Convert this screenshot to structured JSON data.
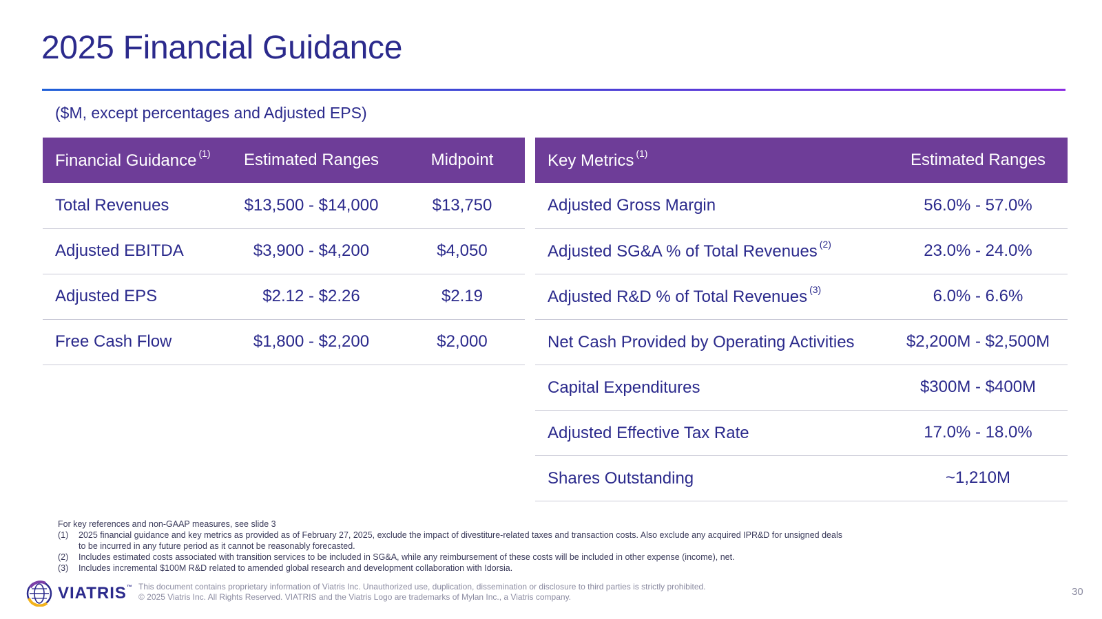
{
  "title": "2025 Financial Guidance",
  "subtitle": "($M, except percentages and Adjusted EPS)",
  "left_table": {
    "headers": {
      "col1": "Financial Guidance",
      "col1_sup": "(1)",
      "col2": "Estimated Ranges",
      "col3": "Midpoint"
    },
    "rows": [
      {
        "label": "Total Revenues",
        "range": "$13,500 - $14,000",
        "midpoint": "$13,750"
      },
      {
        "label": "Adjusted EBITDA",
        "range": "$3,900 - $4,200",
        "midpoint": "$4,050"
      },
      {
        "label": "Adjusted EPS",
        "range": "$2.12 - $2.26",
        "midpoint": "$2.19"
      },
      {
        "label": "Free Cash Flow",
        "range": "$1,800 - $2,200",
        "midpoint": "$2,000"
      }
    ]
  },
  "right_table": {
    "headers": {
      "col1": "Key Metrics",
      "col1_sup": "(1)",
      "col2": "Estimated Ranges"
    },
    "rows": [
      {
        "label": "Adjusted Gross Margin",
        "sup": "",
        "range": "56.0% - 57.0%"
      },
      {
        "label": "Adjusted SG&A % of Total Revenues",
        "sup": "(2)",
        "range": "23.0% - 24.0%"
      },
      {
        "label": "Adjusted R&D % of Total Revenues",
        "sup": "(3)",
        "range": "6.0% - 6.6%"
      },
      {
        "label": "Net Cash Provided by Operating Activities",
        "sup": "",
        "range": "$2,200M - $2,500M"
      },
      {
        "label": "Capital Expenditures",
        "sup": "",
        "range": "$300M - $400M"
      },
      {
        "label": "Adjusted Effective Tax Rate",
        "sup": "",
        "range": "17.0% - 18.0%"
      },
      {
        "label": "Shares Outstanding",
        "sup": "",
        "range": "~1,210M"
      }
    ]
  },
  "footnotes": {
    "intro": "For key references and non-GAAP measures, see slide 3",
    "items": [
      {
        "num": "(1)",
        "text": "2025 financial guidance and key metrics as provided as of February 27, 2025, exclude the impact of divestiture-related taxes and transaction costs. Also exclude any acquired IPR&D for unsigned deals to be incurred in any future period as it cannot be reasonably forecasted."
      },
      {
        "num": "(2)",
        "text": "Includes estimated costs associated with transition services to be included in SG&A, while any reimbursement of these costs will be included in other expense (income), net."
      },
      {
        "num": "(3)",
        "text": "Includes incremental $100M R&D related to amended global research and development collaboration with Idorsia."
      }
    ]
  },
  "footer": {
    "logo_text": "VIATRIS",
    "logo_tm": "™",
    "legal_line1": "This document contains proprietary information of Viatris Inc. Unauthorized use, duplication, dissemination or disclosure to third parties is strictly prohibited.",
    "legal_line2": "© 2025 Viatris Inc. All Rights Reserved. VIATRIS and the Viatris Logo are trademarks of Mylan Inc., a Viatris company.",
    "page_number": "30"
  },
  "colors": {
    "header_bg": "#6e3d98",
    "title_text": "#2b2a8c",
    "rule_start": "#1e5fd8",
    "rule_end": "#8a2be2"
  }
}
